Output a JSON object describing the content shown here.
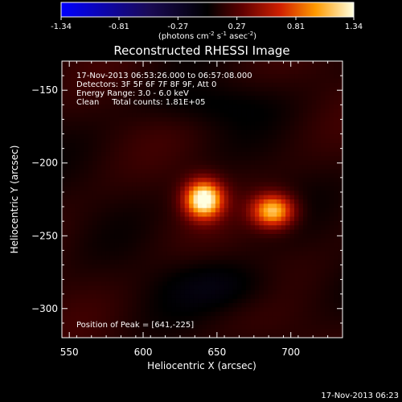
{
  "chart_data": {
    "type": "heatmap",
    "title": "Reconstructed RHESSI Image",
    "xlabel": "Heliocentric X (arcsec)",
    "ylabel": "Heliocentric Y (arcsec)",
    "xlim": [
      545,
      735
    ],
    "ylim": [
      -320,
      -130
    ],
    "x_ticks": [
      550,
      600,
      650,
      700
    ],
    "y_ticks": [
      -150,
      -200,
      -250,
      -300
    ],
    "colorbar": {
      "min": -1.34,
      "max": 1.34,
      "ticks": [
        "-1.34",
        "-0.81",
        "-0.27",
        "0.27",
        "0.81",
        "1.34"
      ],
      "units_label": "(photons cm",
      "units_sup1": "-2",
      "units_mid1": " s",
      "units_sup2": "-1",
      "units_mid2": " asec",
      "units_sup3": "-2",
      "units_end": ")"
    },
    "annotations": [
      "17-Nov-2013 06:53:26.000 to 06:57:08.000",
      "Detectors: 3F 5F 6F 7F 8F 9F, Att 0",
      "Energy Range: 3.0 - 6.0 keV",
      "Clean     Total counts: 1.81E+05"
    ],
    "peak_label": "Position of Peak = [641,-225]",
    "sources": [
      {
        "x": 641,
        "y": -225,
        "amplitude": 1.34,
        "sigma_x": 9,
        "sigma_y": 9
      },
      {
        "x": 688,
        "y": -233,
        "amplitude": 1.05,
        "sigma_x": 10,
        "sigma_y": 8
      }
    ],
    "background_level": 0.12
  },
  "timestamp": "17-Nov-2013 06:23"
}
